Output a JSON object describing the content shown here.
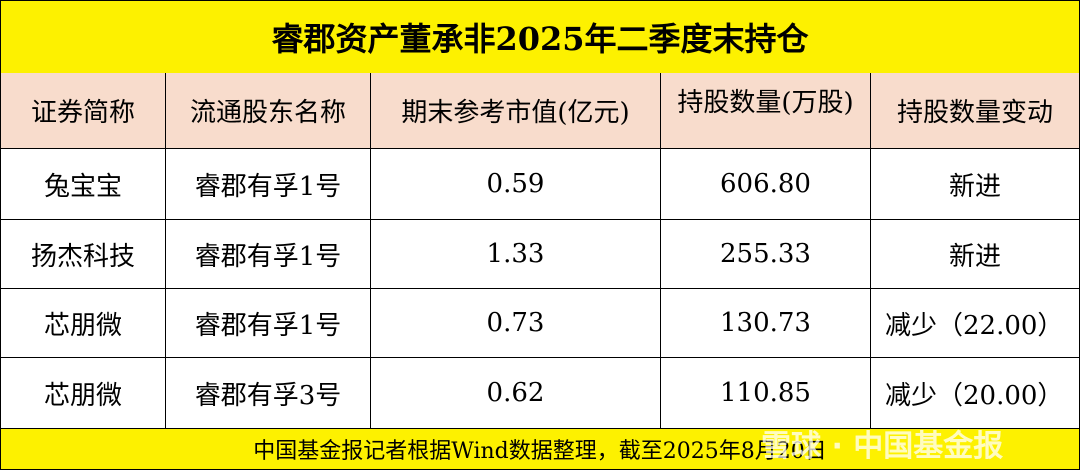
{
  "header": {
    "title": "睿郡资产董承非2025年二季度末持仓"
  },
  "table": {
    "columns": [
      "证券简称",
      "流通股东名称",
      "期末参考市值(亿元)",
      "持股数量(万股)",
      "持股数量变动"
    ],
    "rows": [
      [
        "兔宝宝",
        "睿郡有孚1号",
        "0.59",
        "606.80",
        "新进"
      ],
      [
        "扬杰科技",
        "睿郡有孚1号",
        "1.33",
        "255.33",
        "新进"
      ],
      [
        "芯朋微",
        "睿郡有孚1号",
        "0.73",
        "130.73",
        "减少（22.00）"
      ],
      [
        "芯朋微",
        "睿郡有孚3号",
        "0.62",
        "110.85",
        "减少（20.00）"
      ]
    ]
  },
  "footer": {
    "note": "中国基金报记者根据Wind数据整理，截至2025年8月20日"
  },
  "watermark": {
    "text": "雪球 · 中国基金报"
  }
}
